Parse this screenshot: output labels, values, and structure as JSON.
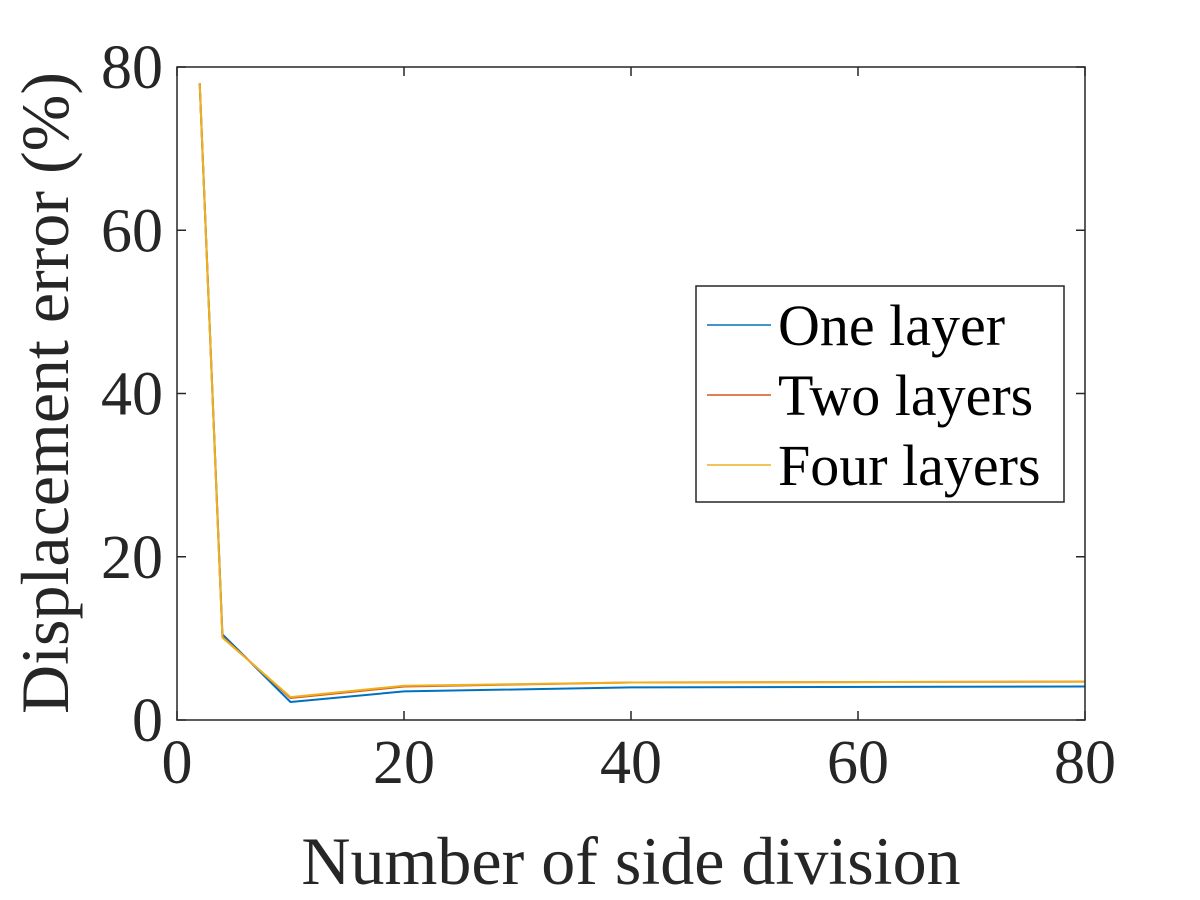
{
  "chart_data": {
    "type": "line",
    "xlabel": "Number of side division",
    "ylabel": "Displacement error (%)",
    "xlim": [
      0,
      80
    ],
    "ylim": [
      0,
      80
    ],
    "xticks": [
      "0",
      "20",
      "40",
      "60",
      "80"
    ],
    "yticks": [
      "0",
      "20",
      "40",
      "60",
      "80"
    ],
    "grid": false,
    "legend_position": "right",
    "series": [
      {
        "name": "One layer",
        "color": "#0072BD",
        "x": [
          2,
          4,
          10,
          20,
          40,
          80
        ],
        "y": [
          78,
          10.5,
          2.2,
          3.5,
          4.0,
          4.1
        ]
      },
      {
        "name": "Two layers",
        "color": "#D95319",
        "x": [
          2,
          4,
          10,
          20,
          40,
          80
        ],
        "y": [
          78,
          10.2,
          2.7,
          4.1,
          4.6,
          4.7
        ]
      },
      {
        "name": "Four layers",
        "color": "#EDB120",
        "x": [
          2,
          4,
          10,
          20,
          40,
          80
        ],
        "y": [
          78,
          10.1,
          2.8,
          4.2,
          4.6,
          4.7
        ]
      }
    ]
  }
}
